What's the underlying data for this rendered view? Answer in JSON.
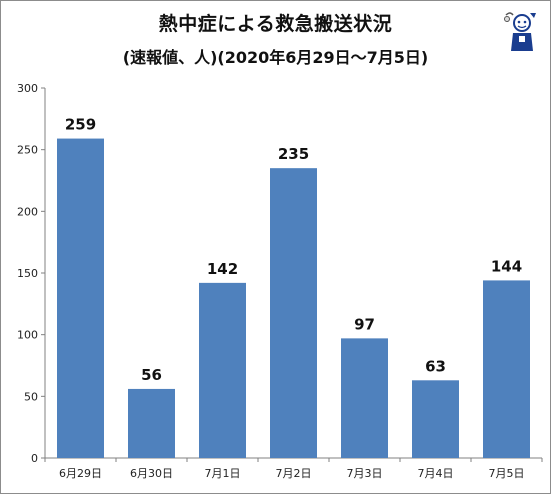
{
  "title": "熱中症による救急搬送状況",
  "subtitle": "(速報値、人)(2020年6月29日〜7月5日)",
  "chart_data": {
    "type": "bar",
    "categories": [
      "6月29日",
      "6月30日",
      "7月1日",
      "7月2日",
      "7月3日",
      "7月4日",
      "7月5日"
    ],
    "values": [
      259,
      56,
      142,
      235,
      97,
      63,
      144
    ],
    "title": "熱中症による救急搬送状況",
    "subtitle": "(速報値、人)(2020年6月29日〜7月5日)",
    "xlabel": "",
    "ylabel": "",
    "ylim": [
      0,
      300
    ],
    "yticks": [
      0,
      50,
      100,
      150,
      200,
      250,
      300
    ],
    "grid": false,
    "legend": "none",
    "bar_color": "#4f81bd"
  }
}
